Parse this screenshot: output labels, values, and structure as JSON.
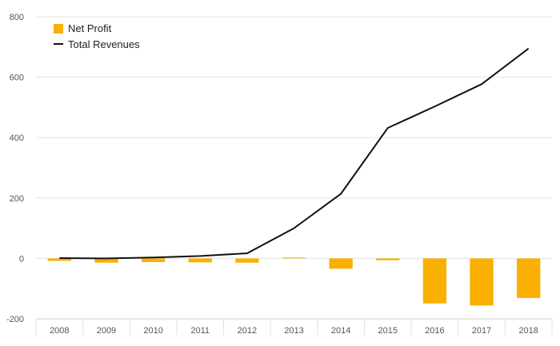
{
  "chart_data": {
    "type": "bar",
    "categories": [
      "2008",
      "2009",
      "2010",
      "2011",
      "2012",
      "2013",
      "2014",
      "2015",
      "2016",
      "2017",
      "2018"
    ],
    "series": [
      {
        "name": "Net Profit",
        "type": "bar",
        "color": "#f9b000",
        "values": [
          -8,
          -14,
          -12,
          -13,
          -14,
          3,
          -34,
          -6,
          -149,
          -156,
          -131
        ]
      },
      {
        "name": "Total Revenues",
        "type": "line",
        "color": "#111111",
        "values": [
          1,
          0,
          3,
          8,
          17,
          100,
          214,
          432,
          503,
          577,
          695
        ]
      }
    ],
    "yticks": [
      "800",
      "600",
      "400",
      "200",
      "0",
      "-200"
    ],
    "ylim": [
      -200,
      800
    ],
    "grid": true,
    "legend_position": "top-left"
  }
}
